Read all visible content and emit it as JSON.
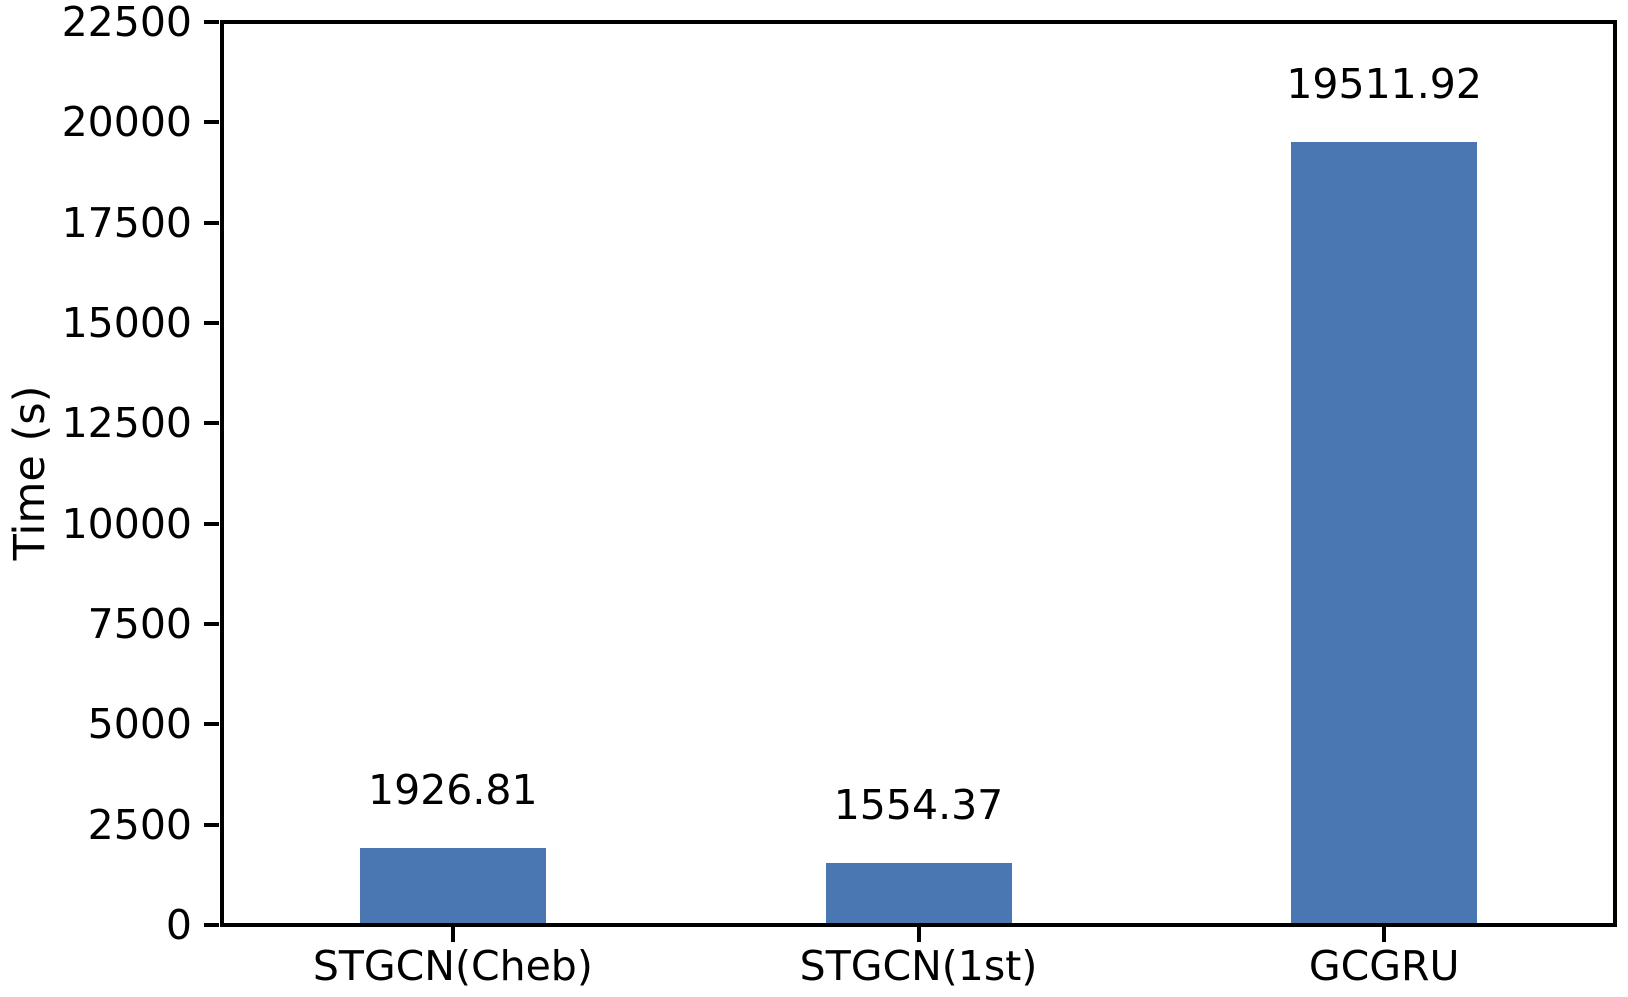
{
  "chart_data": {
    "type": "bar",
    "categories": [
      "STGCN(Cheb)",
      "STGCN(1st)",
      "GCGRU"
    ],
    "values": [
      1926.81,
      1554.37,
      19511.92
    ],
    "value_labels": [
      "1926.81",
      "1554.37",
      "19511.92"
    ],
    "title": "",
    "xlabel": "",
    "ylabel": "Time (s)",
    "ylim": [
      0,
      22500
    ],
    "yticks": [
      0,
      2500,
      5000,
      7500,
      10000,
      12500,
      15000,
      17500,
      20000,
      22500
    ],
    "grid": false,
    "legend": "none",
    "bar_color": "#4A76B2",
    "axis_color": "#000000",
    "background_color": "#FFFFFF",
    "bar_width_fraction": 0.4
  }
}
